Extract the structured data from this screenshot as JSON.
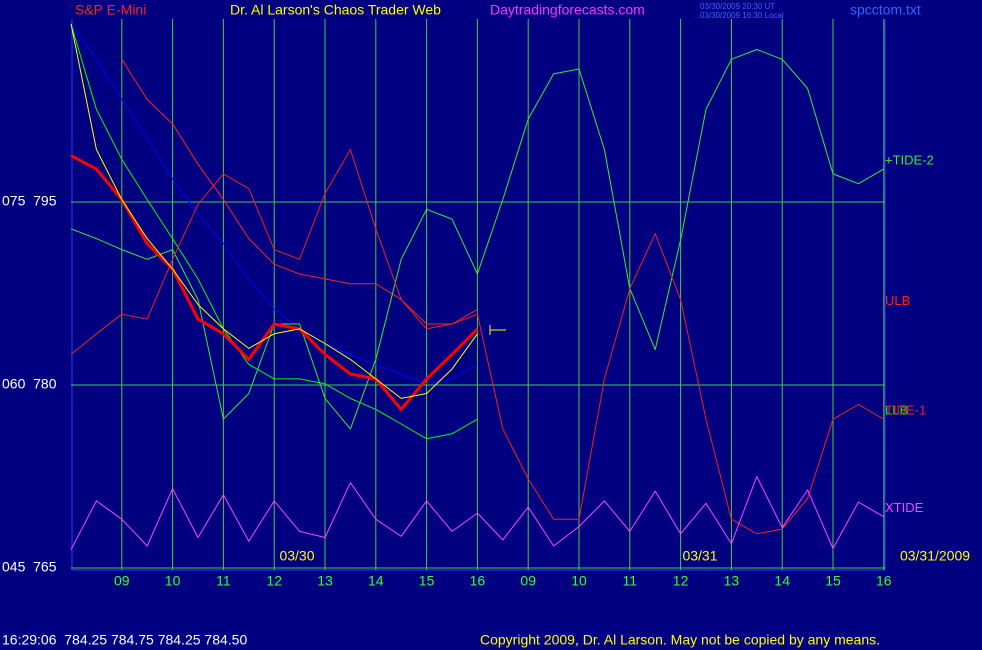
{
  "header": {
    "symbol": "S&P E-Mini",
    "title": "Dr. Al Larson's Chaos Trader Web",
    "site": "Daytradingforecasts.com",
    "time_ut": "03/30/2009 20:30 UT",
    "time_local": "03/30/2009 16:30 Local",
    "file": "spcctom.txt"
  },
  "footer": {
    "status": "16:29:06  784.25 784.75 784.25 784.50",
    "copyright": "Copyright 2009, Dr. Al Larson. May not be copied by any means."
  },
  "chart_data": {
    "type": "line",
    "categories": [
      null,
      null,
      "09",
      null,
      "10",
      null,
      "11",
      null,
      "12",
      null,
      "13",
      null,
      "14",
      null,
      "15",
      null,
      "16",
      null,
      "09",
      null,
      "10",
      null,
      "11",
      null,
      "12",
      null,
      "13",
      null,
      "14",
      null,
      "15",
      null,
      "16"
    ],
    "ylim": [
      765,
      810
    ],
    "yticks": [
      {
        "value": 795,
        "label": "075  795"
      },
      {
        "value": 780,
        "label": "060  780"
      },
      {
        "value": 765,
        "label": "045  765"
      }
    ],
    "grid": true,
    "annotations": [
      "03/30",
      "03/31",
      "03/31/2009"
    ],
    "series": [
      {
        "color": "#0000ff",
        "width": 1,
        "values": [
          809.6,
          806.7,
          803.4,
          800.2,
          796.9,
          794.0,
          791.6,
          788.7,
          786.2,
          784.6,
          783.4,
          782.5,
          781.7,
          780.9,
          780.1,
          780.5,
          781.7,
          null,
          null,
          null,
          null,
          null,
          null,
          null,
          null,
          null,
          null,
          null,
          null,
          null,
          null,
          null,
          null
        ]
      },
      {
        "name": "LLB",
        "color": "#00ff00",
        "width": 1,
        "values": [
          809.6,
          802.6,
          798.5,
          795.2,
          792.0,
          788.7,
          784.6,
          781.7,
          780.5,
          780.5,
          780.1,
          778.9,
          778.0,
          776.8,
          775.6,
          776.0,
          777.2,
          null,
          null,
          null,
          null,
          null,
          null,
          null,
          null,
          null,
          null,
          null,
          null,
          null,
          null,
          null,
          null
        ]
      },
      {
        "name": "ULB",
        "color": "#ff2020",
        "width": 1,
        "values": [
          null,
          null,
          806.7,
          803.4,
          801.4,
          798.1,
          795.2,
          792.0,
          789.9,
          789.1,
          788.7,
          788.3,
          788.3,
          787.0,
          785.0,
          785.0,
          786.2,
          null,
          null,
          null,
          null,
          null,
          null,
          null,
          null,
          null,
          null,
          null,
          null,
          null,
          null,
          null,
          null
        ]
      },
      {
        "name": "+TIDE-2",
        "color": "#33ee33",
        "width": 1,
        "values": [
          792.8,
          792.0,
          791.1,
          790.3,
          791.1,
          787.0,
          777.2,
          779.3,
          785.0,
          785.0,
          778.9,
          776.4,
          782.1,
          790.3,
          794.4,
          793.6,
          789.1,
          795.2,
          801.8,
          805.5,
          805.9,
          799.3,
          787.9,
          782.9,
          791.9,
          802.6,
          806.7,
          807.5,
          806.7,
          804.3,
          797.3,
          796.5,
          797.7
        ]
      },
      {
        "name": "TIDE-1",
        "color": "#ee2222",
        "width": 1,
        "values": [
          782.5,
          784.2,
          785.8,
          785.4,
          790.3,
          794.8,
          797.3,
          796.1,
          791.1,
          790.3,
          795.7,
          799.3,
          792.8,
          787.0,
          784.6,
          785.0,
          785.8,
          776.4,
          772.3,
          769.0,
          769.0,
          780.5,
          787.9,
          792.4,
          787.0,
          777.2,
          769.0,
          767.8,
          768.2,
          770.7,
          777.2,
          778.4,
          777.2
        ]
      },
      {
        "name": "XTIDE",
        "color": "#ff44ff",
        "width": 1,
        "values": [
          766.5,
          770.5,
          769.0,
          766.8,
          771.5,
          767.5,
          771.0,
          767.2,
          770.5,
          768.0,
          767.5,
          772.0,
          769.0,
          767.6,
          770.5,
          768.0,
          769.5,
          767.3,
          770.0,
          766.8,
          768.4,
          770.5,
          768.0,
          771.3,
          767.8,
          770.3,
          767.0,
          772.5,
          768.3,
          771.4,
          766.6,
          770.4,
          769.2
        ]
      },
      {
        "color": "#ff0000",
        "width": 3,
        "values": [
          798.8,
          797.7,
          795.2,
          791.6,
          789.5,
          785.4,
          784.2,
          782.1,
          785.0,
          784.6,
          782.5,
          780.9,
          780.5,
          778.0,
          780.5,
          782.5,
          784.6,
          null,
          null,
          null,
          null,
          null,
          null,
          null,
          null,
          null,
          null,
          null,
          null,
          null,
          null,
          null,
          null
        ]
      },
      {
        "color": "#ffff00",
        "width": 1,
        "values": [
          809.6,
          799.3,
          795.2,
          792.0,
          789.5,
          786.6,
          784.6,
          783.0,
          784.2,
          784.6,
          783.4,
          782.1,
          780.5,
          778.9,
          779.3,
          781.3,
          784.2,
          null,
          null,
          null,
          null,
          null,
          null,
          null,
          null,
          null,
          null,
          null,
          null,
          null,
          null,
          null,
          null
        ]
      }
    ]
  }
}
